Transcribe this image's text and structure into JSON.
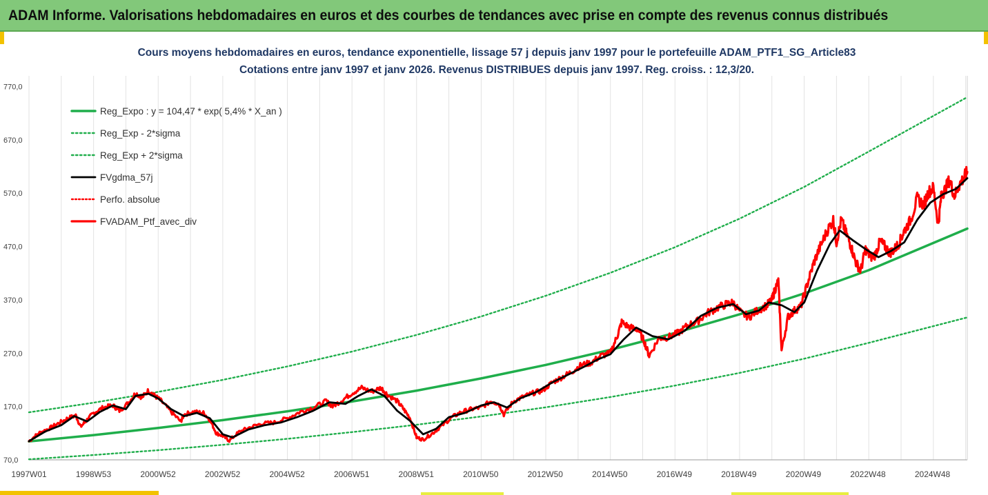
{
  "header": {
    "title": "ADAM Informe. Valorisations hebdomadaires en euros et des courbes de tendances avec prise en compte des revenus connus distribués"
  },
  "chart_data": {
    "type": "line",
    "title": "Cours moyens hebdomadaires  en euros, tendance exponentielle, lissage 57 j depuis janv 1997 pour le portefeuille ADAM_PTF1_SG_Article83",
    "subtitle": "Cotations entre janv 1997 et janv 2026. Revenus DISTRIBUES depuis janv 1997. Reg. croiss. : 12,3/20.",
    "xlabel": "",
    "ylabel": "",
    "x_range": [
      1997.0,
      2026.05
    ],
    "ylim": [
      70,
      800
    ],
    "y_ticks": [
      "70,0",
      "170,0",
      "270,0",
      "370,0",
      "470,0",
      "570,0",
      "670,0",
      "770,0"
    ],
    "x_ticks": [
      "1997W01",
      "1998W53",
      "2000W52",
      "2002W52",
      "2004W52",
      "2006W51",
      "2008W51",
      "2010W50",
      "2012W50",
      "2014W50",
      "2016W49",
      "2018W49",
      "2020W49",
      "2022W48",
      "2024W48"
    ],
    "grid": "vertical",
    "legend_position": "top-left",
    "colors": {
      "reg_expo": "#1fae4b",
      "sigma": "#1fae4b",
      "smoothed": "#000000",
      "perf": "#ff0000",
      "ptf": "#ff0000"
    },
    "series": [
      {
        "name": "Reg_Expo : y = 104,47 * exp( 5,4% *  X_an )",
        "style": "solid-green",
        "x": [
          1997.0,
          1999.0,
          2001.0,
          2003.0,
          2005.0,
          2007.0,
          2009.0,
          2011.0,
          2013.0,
          2015.0,
          2017.0,
          2019.0,
          2021.0,
          2023.0,
          2026.05
        ],
        "values": [
          104.5,
          116.4,
          129.7,
          144.5,
          161.0,
          179.3,
          199.8,
          222.6,
          248.0,
          276.3,
          307.8,
          342.9,
          382.0,
          425.6,
          503.5
        ]
      },
      {
        "name": "Reg_Exp - 2*sigma",
        "style": "dotted-green",
        "x": [
          1997.0,
          1999.0,
          2001.0,
          2003.0,
          2005.0,
          2007.0,
          2009.0,
          2011.0,
          2013.0,
          2015.0,
          2017.0,
          2019.0,
          2021.0,
          2023.0,
          2026.05
        ],
        "values": [
          71.0,
          79.1,
          88.1,
          98.2,
          109.4,
          121.9,
          135.8,
          151.3,
          168.5,
          187.8,
          209.2,
          233.0,
          259.6,
          289.3,
          337.0
        ]
      },
      {
        "name": "Reg_Exp + 2*sigma",
        "style": "dotted-green",
        "x": [
          1997.0,
          1999.0,
          2001.0,
          2003.0,
          2005.0,
          2007.0,
          2009.0,
          2011.0,
          2013.0,
          2015.0,
          2017.0,
          2019.0,
          2021.0,
          2023.0,
          2026.05
        ],
        "values": [
          159.0,
          177.2,
          197.4,
          220.0,
          245.1,
          273.0,
          304.2,
          338.9,
          377.6,
          420.7,
          468.7,
          522.2,
          581.7,
          648.1,
          750.0
        ]
      },
      {
        "name": "FVgdma_57j",
        "style": "solid-black",
        "x": [
          1997.0,
          1997.5,
          1998.0,
          1998.4,
          1998.8,
          1999.2,
          1999.6,
          2000.0,
          2000.3,
          2000.7,
          2001.0,
          2001.4,
          2001.8,
          2002.2,
          2002.6,
          2003.0,
          2003.3,
          2003.8,
          2004.3,
          2004.8,
          2005.3,
          2005.8,
          2006.3,
          2006.8,
          2007.2,
          2007.6,
          2008.0,
          2008.4,
          2008.8,
          2009.2,
          2009.6,
          2010.0,
          2010.5,
          2011.0,
          2011.4,
          2011.8,
          2012.2,
          2012.7,
          2013.2,
          2013.7,
          2014.2,
          2014.6,
          2015.0,
          2015.4,
          2015.8,
          2016.3,
          2016.8,
          2017.3,
          2017.8,
          2018.3,
          2018.8,
          2019.2,
          2019.6,
          2019.9,
          2020.3,
          2020.7,
          2021.0,
          2021.4,
          2021.8,
          2022.1,
          2022.5,
          2022.9,
          2023.3,
          2023.7,
          2024.1,
          2024.5,
          2024.9,
          2025.3,
          2025.7,
          2026.05
        ],
        "values": [
          105,
          123,
          135,
          152,
          142,
          160,
          172,
          165,
          190,
          194,
          185,
          165,
          152,
          158,
          148,
          118,
          112,
          127,
          135,
          140,
          150,
          162,
          178,
          175,
          190,
          202,
          190,
          162,
          143,
          118,
          128,
          150,
          158,
          172,
          178,
          168,
          185,
          197,
          215,
          230,
          245,
          258,
          268,
          295,
          318,
          302,
          296,
          312,
          340,
          355,
          362,
          343,
          350,
          365,
          360,
          347,
          365,
          425,
          475,
          500,
          482,
          465,
          450,
          462,
          478,
          520,
          552,
          568,
          578,
          598
        ]
      },
      {
        "name": "Perfo. absolue",
        "style": "dotted-red",
        "x": [
          1997.0,
          1997.5,
          1998.0,
          1998.4,
          1998.8,
          1999.2,
          1999.6,
          2000.0,
          2000.3,
          2000.7,
          2001.0,
          2001.4,
          2001.8,
          2002.2,
          2002.6,
          2003.0,
          2003.3,
          2003.8,
          2004.3,
          2004.8,
          2005.3,
          2005.8,
          2006.3,
          2006.8,
          2007.2,
          2007.6,
          2008.0,
          2008.4,
          2008.8,
          2009.2,
          2009.6,
          2010.0,
          2010.5,
          2011.0,
          2011.4,
          2011.8,
          2012.2,
          2012.7,
          2013.2,
          2013.7,
          2014.2,
          2014.6,
          2015.0,
          2015.4,
          2015.8,
          2016.3,
          2016.8,
          2017.3,
          2017.8,
          2018.3,
          2018.8,
          2019.2,
          2019.6,
          2019.9,
          2020.3,
          2020.7,
          2021.0,
          2021.4,
          2021.8,
          2022.1,
          2022.5,
          2022.9,
          2023.3,
          2023.7,
          2024.1,
          2024.5,
          2024.9,
          2025.3,
          2025.7,
          2026.05
        ],
        "values": [
          105,
          123,
          135,
          152,
          142,
          160,
          172,
          165,
          190,
          194,
          185,
          165,
          152,
          158,
          148,
          118,
          112,
          127,
          135,
          140,
          150,
          162,
          178,
          175,
          190,
          202,
          190,
          162,
          143,
          118,
          128,
          150,
          158,
          172,
          178,
          168,
          185,
          197,
          215,
          230,
          245,
          258,
          268,
          295,
          318,
          302,
          296,
          312,
          340,
          355,
          362,
          343,
          350,
          365,
          360,
          347,
          365,
          425,
          475,
          500,
          482,
          465,
          450,
          462,
          478,
          520,
          552,
          568,
          578,
          598
        ]
      },
      {
        "name": "FVADAM_Ptf_avec_div",
        "style": "solid-red",
        "x": [
          1997.0,
          1997.3,
          1997.6,
          1997.9,
          1998.2,
          1998.45,
          1998.6,
          1998.8,
          1999.0,
          1999.3,
          1999.6,
          1999.8,
          2000.1,
          2000.3,
          2000.5,
          2000.7,
          2000.9,
          2001.1,
          2001.4,
          2001.7,
          2001.8,
          2002.1,
          2002.4,
          2002.6,
          2002.8,
          2003.0,
          2003.2,
          2003.5,
          2003.8,
          2004.2,
          2004.6,
          2005.0,
          2005.4,
          2005.8,
          2006.2,
          2006.4,
          2006.7,
          2007.0,
          2007.3,
          2007.6,
          2007.9,
          2008.1,
          2008.4,
          2008.6,
          2008.8,
          2009.0,
          2009.2,
          2009.5,
          2009.8,
          2010.1,
          2010.4,
          2010.7,
          2011.0,
          2011.3,
          2011.55,
          2011.7,
          2012.0,
          2012.3,
          2012.6,
          2012.9,
          2013.2,
          2013.5,
          2013.8,
          2014.1,
          2014.4,
          2014.7,
          2015.0,
          2015.2,
          2015.35,
          2015.6,
          2015.85,
          2016.05,
          2016.2,
          2016.5,
          2016.8,
          2017.1,
          2017.4,
          2017.7,
          2018.0,
          2018.3,
          2018.6,
          2018.8,
          2019.05,
          2019.3,
          2019.55,
          2019.85,
          2020.0,
          2020.1,
          2020.2,
          2020.3,
          2020.5,
          2020.7,
          2020.9,
          2021.1,
          2021.3,
          2021.5,
          2021.7,
          2021.9,
          2022.0,
          2022.15,
          2022.3,
          2022.45,
          2022.6,
          2022.75,
          2022.9,
          2023.05,
          2023.2,
          2023.35,
          2023.5,
          2023.65,
          2023.8,
          2023.95,
          2024.1,
          2024.3,
          2024.5,
          2024.7,
          2024.85,
          2025.0,
          2025.15,
          2025.25,
          2025.35,
          2025.5,
          2025.65,
          2025.8,
          2025.95,
          2026.05
        ],
        "values": [
          105,
          120,
          128,
          138,
          148,
          153,
          132,
          145,
          158,
          168,
          172,
          162,
          178,
          195,
          187,
          200,
          190,
          180,
          160,
          142,
          155,
          160,
          158,
          145,
          120,
          115,
          106,
          122,
          130,
          138,
          140,
          148,
          160,
          168,
          180,
          170,
          182,
          195,
          205,
          198,
          205,
          192,
          180,
          165,
          148,
          112,
          108,
          120,
          135,
          150,
          160,
          165,
          168,
          180,
          175,
          155,
          180,
          188,
          195,
          200,
          215,
          225,
          235,
          248,
          252,
          265,
          270,
          300,
          328,
          318,
          315,
          292,
          265,
          298,
          300,
          308,
          322,
          330,
          345,
          355,
          362,
          365,
          345,
          338,
          350,
          360,
          370,
          390,
          405,
          275,
          338,
          350,
          358,
          400,
          440,
          470,
          498,
          520,
          478,
          520,
          495,
          470,
          440,
          425,
          465,
          450,
          455,
          480,
          470,
          458,
          465,
          478,
          500,
          520,
          560,
          548,
          572,
          580,
          510,
          568,
          575,
          595,
          565,
          585,
          600,
          610
        ]
      }
    ]
  }
}
